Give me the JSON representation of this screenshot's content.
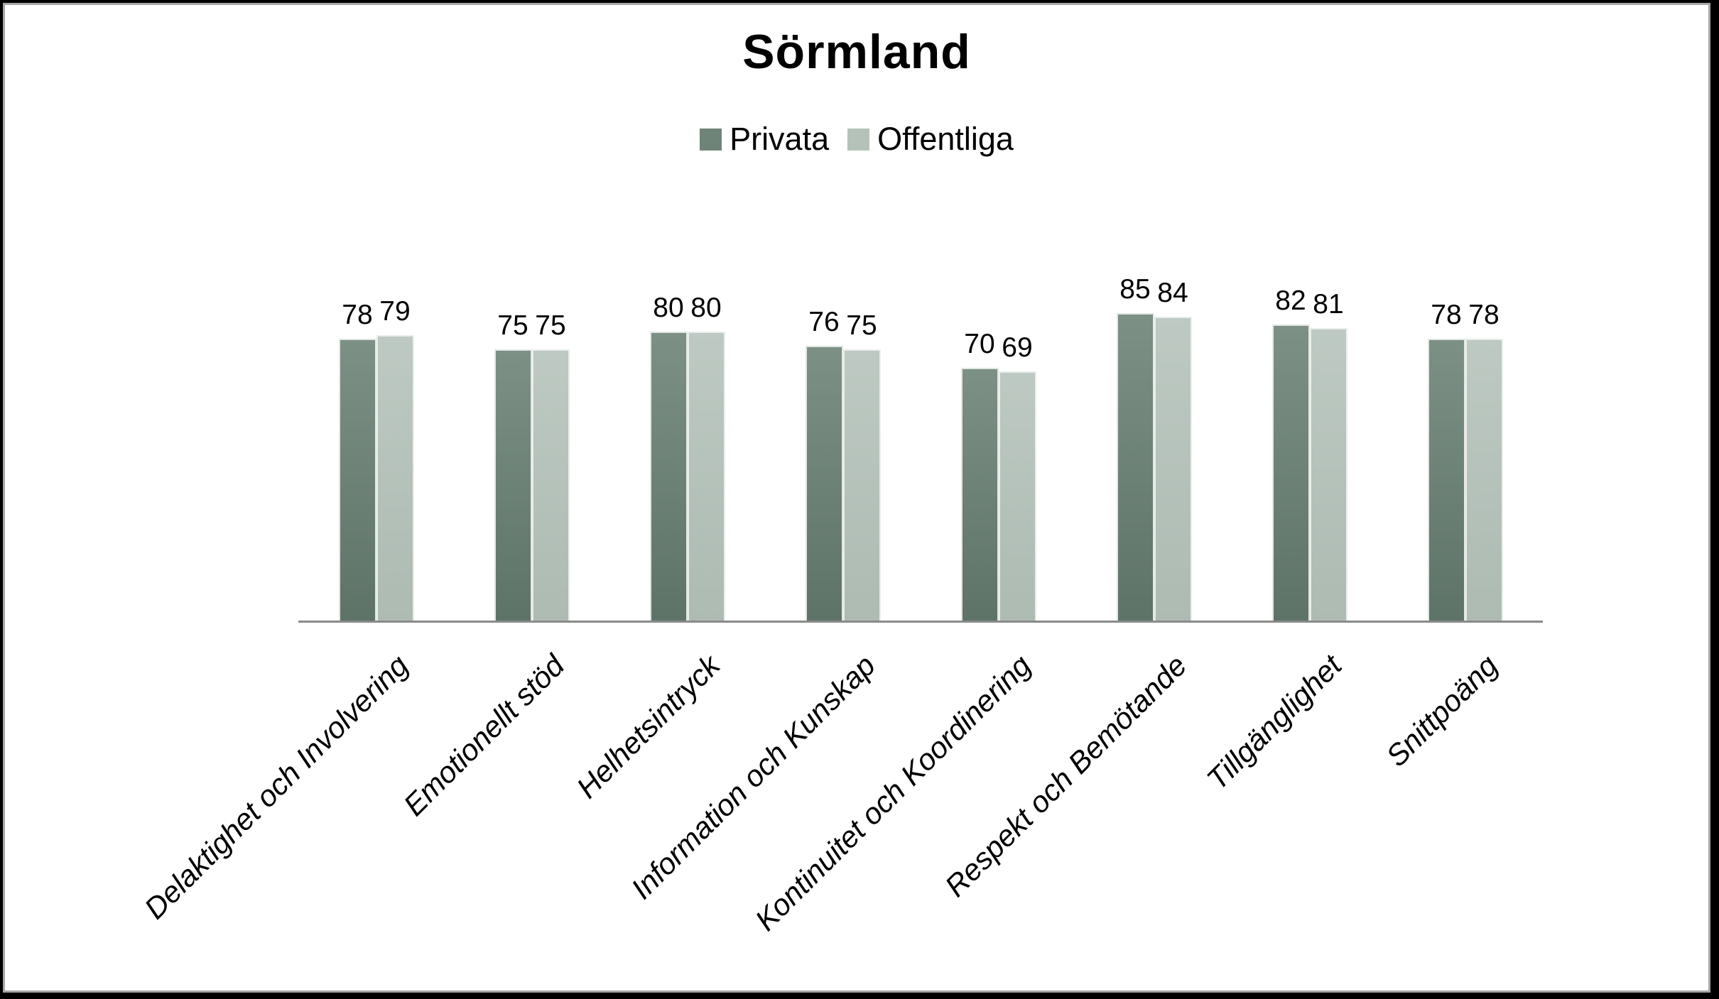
{
  "title": "Sörmland",
  "chart_data": {
    "type": "bar",
    "title": "Sörmland",
    "categories": [
      "Delaktighet och Involvering",
      "Emotionellt stöd",
      "Helhetsintryck",
      "Information och Kunskap",
      "Kontinuitet och Koordinering",
      "Respekt och Bemötande",
      "Tillgänglighet",
      "Snittpoäng"
    ],
    "series": [
      {
        "name": "Privata",
        "values": [
          78,
          75,
          80,
          76,
          70,
          85,
          82,
          78
        ],
        "color_top": "#7c9085",
        "color_bottom": "#5e7367",
        "legend_color": "#6f8478"
      },
      {
        "name": "Offentliga",
        "values": [
          79,
          75,
          80,
          75,
          69,
          84,
          81,
          78
        ],
        "color_top": "#bdc9c2",
        "color_bottom": "#adbbb3",
        "legend_color": "#b5c2ba"
      }
    ],
    "ylim": [
      0,
      100
    ],
    "grid": false,
    "legend_position": "top",
    "value_labels": true,
    "axis_line_color": "#8a8a8a",
    "xlabel": "",
    "ylabel": ""
  }
}
